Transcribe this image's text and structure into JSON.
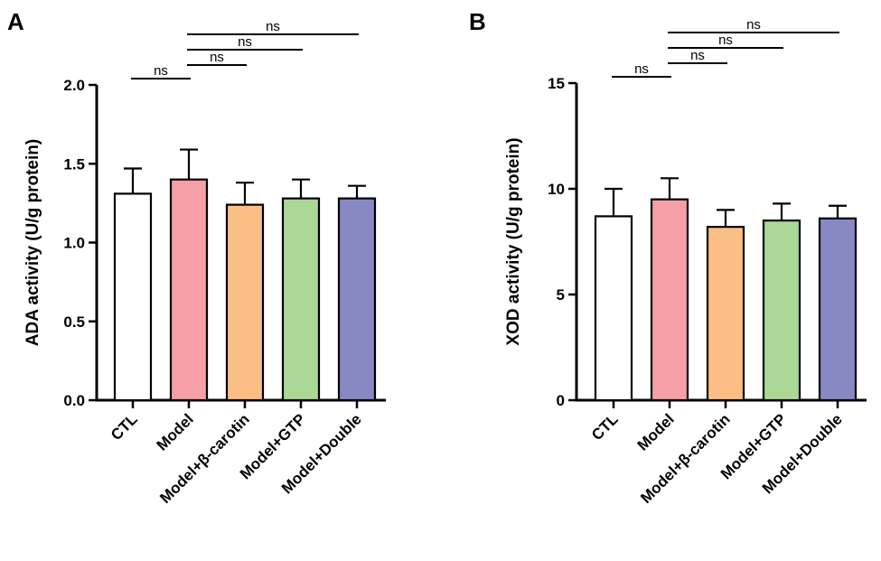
{
  "chart_data": [
    {
      "type": "bar",
      "panel": "A",
      "title": "",
      "xlabel": "",
      "ylabel": "ADA activity (U/g protein)",
      "ylim": [
        0,
        2.0
      ],
      "yticks": [
        "0.0",
        "0.5",
        "1.0",
        "1.5",
        "2.0"
      ],
      "categories": [
        "CTL",
        "Model",
        "Model+β-carotin",
        "Model+GTP",
        "Model+Double"
      ],
      "values": [
        1.31,
        1.4,
        1.24,
        1.28,
        1.28
      ],
      "errors": [
        0.16,
        0.19,
        0.14,
        0.12,
        0.08
      ],
      "colors": [
        "#ffffff",
        "#f4a0a6",
        "#fbbf86",
        "#abd797",
        "#8888c2"
      ],
      "comparisons": [
        {
          "from": 0,
          "to": 1,
          "label": "ns"
        },
        {
          "from": 1,
          "to": 2,
          "label": "ns"
        },
        {
          "from": 1,
          "to": 3,
          "label": "ns"
        },
        {
          "from": 1,
          "to": 4,
          "label": "ns"
        }
      ]
    },
    {
      "type": "bar",
      "panel": "B",
      "title": "",
      "xlabel": "",
      "ylabel": "XOD activity (U/g protein)",
      "ylim": [
        0,
        15
      ],
      "yticks": [
        "0",
        "5",
        "10",
        "15"
      ],
      "categories": [
        "CTL",
        "Model",
        "Model+β-carotin",
        "Model+GTP",
        "Model+Double"
      ],
      "values": [
        8.7,
        9.5,
        8.2,
        8.5,
        8.6
      ],
      "errors": [
        1.3,
        1.0,
        0.8,
        0.8,
        0.6
      ],
      "colors": [
        "#ffffff",
        "#f4a0a6",
        "#fbbf86",
        "#abd797",
        "#8888c2"
      ],
      "comparisons": [
        {
          "from": 0,
          "to": 1,
          "label": "ns"
        },
        {
          "from": 1,
          "to": 2,
          "label": "ns"
        },
        {
          "from": 1,
          "to": 3,
          "label": "ns"
        },
        {
          "from": 1,
          "to": 4,
          "label": "ns"
        }
      ]
    }
  ]
}
